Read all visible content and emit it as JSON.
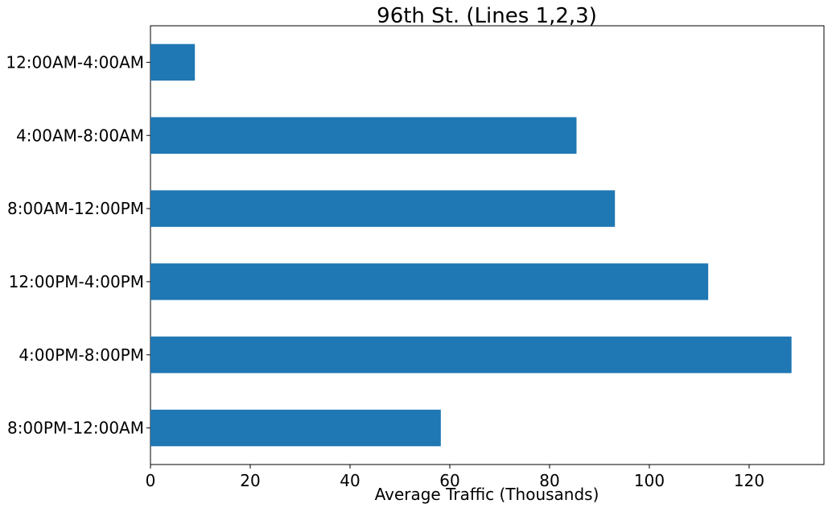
{
  "chart_data": {
    "type": "bar",
    "orientation": "horizontal",
    "title": "96th St. (Lines 1,2,3)",
    "xlabel": "Average Traffic (Thousands)",
    "ylabel": "",
    "categories": [
      "12:00AM-4:00AM",
      "4:00AM-8:00AM",
      "8:00AM-12:00PM",
      "12:00PM-4:00PM",
      "4:00PM-8:00PM",
      "8:00PM-12:00AM"
    ],
    "values": [
      8.9,
      85.4,
      93.1,
      111.8,
      128.5,
      58.2
    ],
    "xlim": [
      0,
      135
    ],
    "xticks": [
      0,
      20,
      40,
      60,
      80,
      100,
      120
    ],
    "grid": false,
    "bar_color": "#1f77b4"
  }
}
